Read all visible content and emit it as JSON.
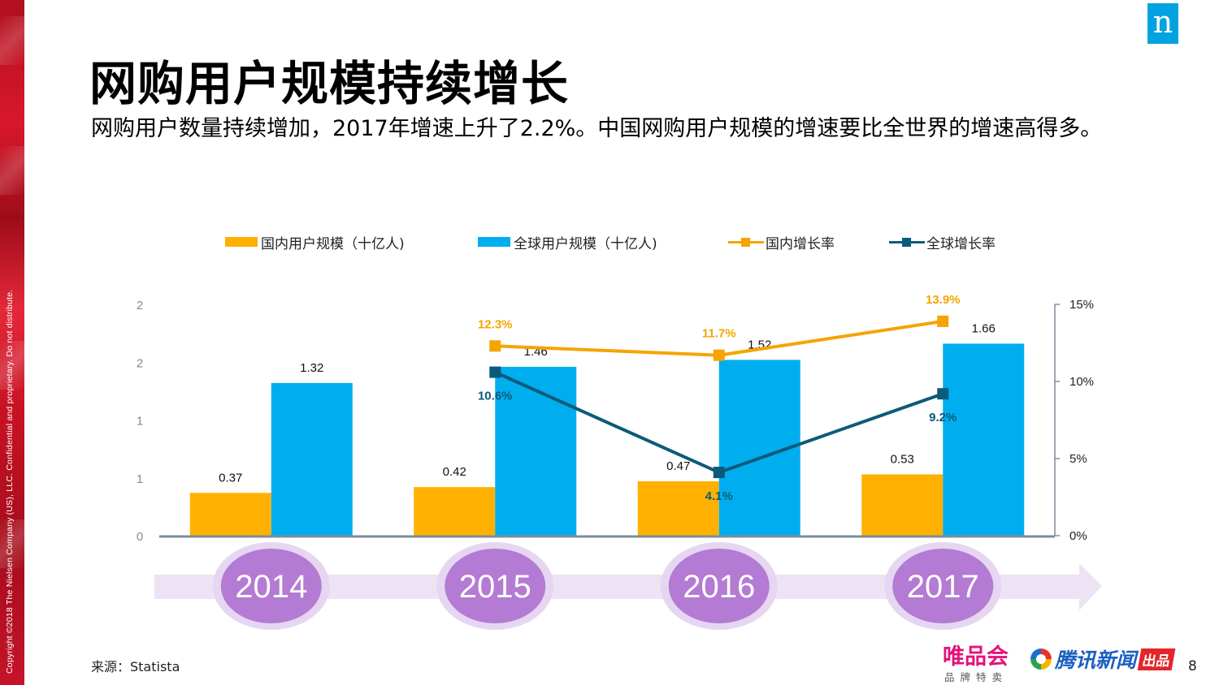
{
  "slide": {
    "title": "网购用户规模持续增长",
    "subtitle": "网购用户数量持续增加，2017年增速上升了2.2%。中国网购用户规模的增速要比全世界的增速高得多。",
    "copyright": "Copyright ©2018 The Nielsen Company (US), LLC. Confidential and proprietary. Do not distribute.",
    "logo_letter": "n",
    "source": "来源：Statista",
    "page_number": "8",
    "brand_vip": "唯品会",
    "brand_vip_sub": "品牌特卖",
    "brand_tencent": "腾讯新闻",
    "brand_chupin": "出品"
  },
  "colors": {
    "domestic_bar": "#FFB000",
    "global_bar": "#00AEEF",
    "domestic_rate": "#F5A400",
    "global_rate": "#0C5A7A",
    "timeline_arrow": "#EDE3F4",
    "timeline_ring": "#E6D6F1",
    "timeline_circle": "#B37BD3",
    "axis": "#7F8C9A",
    "red_band": "#C8102E",
    "logo_blue": "#00A3E0"
  },
  "chart_data": {
    "type": "bar",
    "categories": [
      "2014",
      "2015",
      "2016",
      "2017"
    ],
    "series": [
      {
        "name": "国内用户规模（十亿人)",
        "kind": "bar",
        "axis": "left",
        "values": [
          0.37,
          0.42,
          0.47,
          0.53
        ],
        "labels": [
          "0.37",
          "0.42",
          "0.47",
          "0.53"
        ]
      },
      {
        "name": "全球用户规模（十亿人)",
        "kind": "bar",
        "axis": "left",
        "values": [
          1.32,
          1.46,
          1.52,
          1.66
        ],
        "labels": [
          "1.32",
          "1.46",
          "1.52",
          "1.66"
        ]
      },
      {
        "name": "国内增长率",
        "kind": "line",
        "axis": "right",
        "values": [
          null,
          12.3,
          11.7,
          13.9
        ],
        "labels": [
          "",
          "12.3%",
          "11.7%",
          "13.9%"
        ]
      },
      {
        "name": "全球增长率",
        "kind": "line",
        "axis": "right",
        "values": [
          null,
          10.6,
          4.1,
          9.2
        ],
        "labels": [
          "",
          "10.6%",
          "4.1%",
          "9.2%"
        ]
      }
    ],
    "left_axis": {
      "ylim": [
        0,
        2
      ],
      "tick_values": [
        0,
        0.5,
        1,
        1.5,
        2
      ],
      "tick_labels": [
        "0",
        "1",
        "1",
        "2",
        "2"
      ]
    },
    "right_axis": {
      "ylim": [
        0,
        15
      ],
      "tick_values": [
        0,
        5,
        10,
        15
      ],
      "tick_labels": [
        "0%",
        "5%",
        "10%",
        "15%"
      ]
    },
    "legend_position": "top",
    "grid": false
  }
}
